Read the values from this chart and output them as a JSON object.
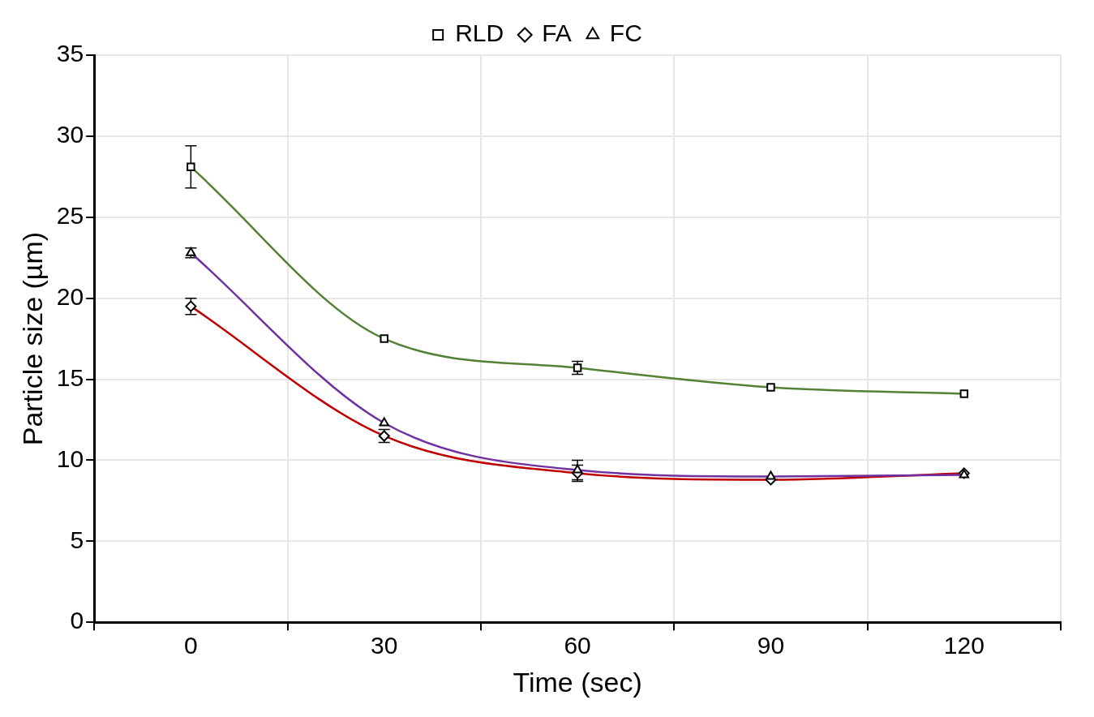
{
  "chart_data": {
    "type": "line",
    "xlabel": "Time (sec)",
    "ylabel": "Particle size (µm)",
    "categories": [
      "0",
      "30",
      "60",
      "90",
      "120"
    ],
    "ylim": [
      0,
      35
    ],
    "yticks": [
      0,
      5,
      10,
      15,
      20,
      25,
      30,
      35
    ],
    "grid": true,
    "legend": "top",
    "line_style": "solid",
    "series": [
      {
        "name": "RLD",
        "color": "#548235",
        "marker": "square",
        "values": [
          28.1,
          17.5,
          15.7,
          14.5,
          14.1
        ],
        "errors": [
          1.3,
          null,
          0.4,
          null,
          null
        ]
      },
      {
        "name": "FA",
        "color": "#c00000",
        "marker": "diamond",
        "values": [
          19.5,
          11.5,
          9.2,
          8.8,
          9.2
        ],
        "errors": [
          0.5,
          0.4,
          0.5,
          null,
          null
        ]
      },
      {
        "name": "FC",
        "color": "#7030a0",
        "marker": "triangle",
        "values": [
          22.8,
          12.3,
          9.4,
          9.0,
          9.1
        ],
        "errors": [
          0.3,
          null,
          0.6,
          null,
          null
        ]
      }
    ]
  }
}
